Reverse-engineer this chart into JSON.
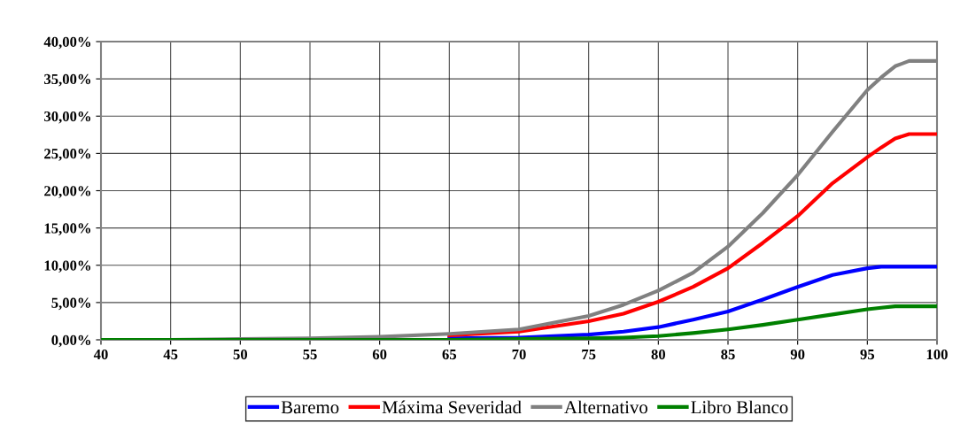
{
  "chart_data": {
    "type": "line",
    "x": [
      40,
      45,
      50,
      55,
      60,
      65,
      70,
      75,
      77.5,
      80,
      82.5,
      85,
      87.5,
      90,
      92.5,
      95,
      96,
      97,
      98,
      100
    ],
    "series": [
      {
        "name": "Baremo",
        "color": "#0000ff",
        "values": [
          null,
          null,
          null,
          null,
          null,
          0.2,
          0.3,
          0.7,
          1.1,
          1.7,
          2.7,
          3.8,
          5.4,
          7.1,
          8.7,
          9.6,
          9.8,
          9.8,
          9.8,
          9.8
        ]
      },
      {
        "name": "Máxima Severidad",
        "color": "#ff0000",
        "values": [
          null,
          null,
          null,
          null,
          null,
          0.6,
          1.1,
          2.5,
          3.5,
          5.1,
          7.1,
          9.6,
          13.0,
          16.6,
          21.0,
          24.5,
          25.8,
          27.0,
          27.6,
          27.6
        ]
      },
      {
        "name": "Alternativo",
        "color": "#808080",
        "values": [
          0,
          0,
          0.1,
          0.2,
          0.4,
          0.8,
          1.4,
          3.2,
          4.7,
          6.6,
          9.0,
          12.5,
          17.0,
          22.1,
          27.9,
          33.5,
          35.2,
          36.7,
          37.4,
          37.4
        ]
      },
      {
        "name": "Libro Blanco",
        "color": "#008000",
        "values": [
          0,
          0,
          0,
          0,
          0,
          0,
          0.1,
          0.2,
          0.3,
          0.5,
          0.9,
          1.4,
          2.0,
          2.7,
          3.4,
          4.1,
          4.3,
          4.5,
          4.5,
          4.5
        ]
      }
    ],
    "xlim": [
      40,
      100
    ],
    "xticks": [
      40,
      45,
      50,
      55,
      60,
      65,
      70,
      75,
      80,
      85,
      90,
      95,
      100
    ],
    "ylim": [
      0,
      40
    ],
    "yticks": [
      {
        "value": 0,
        "label": "0,00%"
      },
      {
        "value": 5,
        "label": "5,00%"
      },
      {
        "value": 10,
        "label": "10,00%"
      },
      {
        "value": 15,
        "label": "15,00%"
      },
      {
        "value": 20,
        "label": "20,00%"
      },
      {
        "value": 25,
        "label": "25,00%"
      },
      {
        "value": 30,
        "label": "30,00%"
      },
      {
        "value": 35,
        "label": "35,00%"
      },
      {
        "value": 40,
        "label": "40,00%"
      }
    ],
    "grid": true,
    "legend": "bottom",
    "marker": "none",
    "line_style": "solid"
  }
}
